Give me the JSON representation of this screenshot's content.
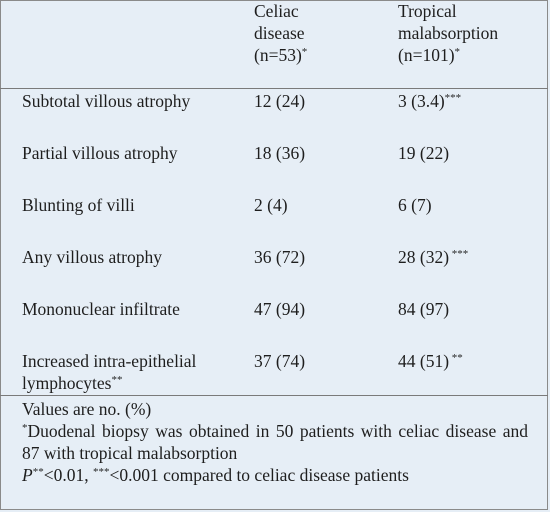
{
  "header": {
    "col1": "",
    "col2_line1": "Celiac",
    "col2_line2": "disease",
    "col2_line3": "(n=53)",
    "col2_mark": "*",
    "col3_line1": "Tropical",
    "col3_line2": "malabsorption",
    "col3_line3": "(n=101)",
    "col3_mark": "*"
  },
  "rows": [
    {
      "label": "Subtotal villous atrophy",
      "label_line2": "",
      "label_mark": "",
      "celiac": "12 (24)",
      "celiac_mark": "",
      "tropical": "3 (3.4)",
      "tropical_mark": "***"
    },
    {
      "label": "Partial villous atrophy",
      "label_line2": "",
      "label_mark": "",
      "celiac": "18 (36)",
      "celiac_mark": "",
      "tropical": "19 (22)",
      "tropical_mark": ""
    },
    {
      "label": "Blunting of villi",
      "label_line2": "",
      "label_mark": "",
      "celiac": "2 (4)",
      "celiac_mark": "",
      "tropical": "6 (7)",
      "tropical_mark": ""
    },
    {
      "label": "Any villous atrophy",
      "label_line2": "",
      "label_mark": "",
      "celiac": "36 (72)",
      "celiac_mark": "",
      "tropical": "28 (32)",
      "tropical_mark": " ***"
    },
    {
      "label": "Mononuclear infiltrate",
      "label_line2": "",
      "label_mark": "",
      "celiac": "47 (94)",
      "celiac_mark": "",
      "tropical": "84 (97)",
      "tropical_mark": ""
    },
    {
      "label": "Increased intra-epithelial",
      "label_line2": "lymphocytes",
      "label_mark": "**",
      "celiac": "37 (74)",
      "celiac_mark": "",
      "tropical": "44 (51)",
      "tropical_mark": " **"
    }
  ],
  "footnotes": {
    "values_note": "Values are no. (%)",
    "star_mark": "*",
    "star_text": "Duodenal biopsy was obtained in 50 patients with celiac disease and 87 with tropical malabsorption",
    "p_label": "P",
    "p_mark1": "**",
    "p_text1": "<0.01, ",
    "p_mark2": "***",
    "p_text2": "<0.001 compared to celiac disease patients"
  }
}
